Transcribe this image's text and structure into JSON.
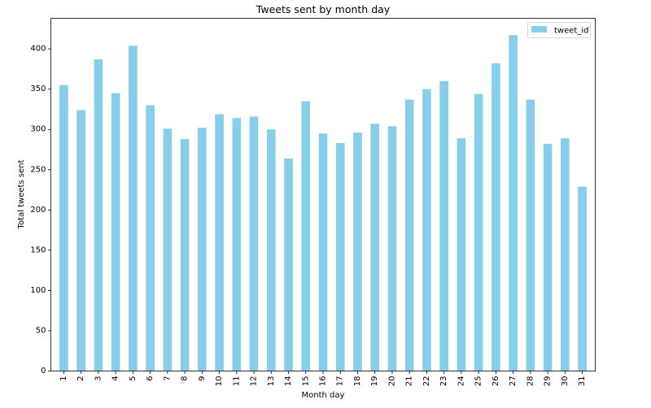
{
  "chart_data": {
    "type": "bar",
    "title": "Tweets sent by month day",
    "xlabel": "Month day",
    "ylabel": "Total tweets sent",
    "categories": [
      "1",
      "2",
      "3",
      "4",
      "5",
      "6",
      "7",
      "8",
      "9",
      "10",
      "11",
      "12",
      "13",
      "14",
      "15",
      "16",
      "17",
      "18",
      "19",
      "20",
      "21",
      "22",
      "23",
      "24",
      "25",
      "26",
      "27",
      "28",
      "29",
      "30",
      "31"
    ],
    "series": [
      {
        "name": "tweet_id",
        "color": "#87CEEB",
        "values": [
          355,
          324,
          387,
          345,
          404,
          330,
          301,
          288,
          302,
          319,
          314,
          316,
          300,
          264,
          335,
          295,
          283,
          296,
          307,
          304,
          337,
          350,
          360,
          289,
          344,
          382,
          417,
          337,
          282,
          289,
          229
        ]
      }
    ],
    "ylim": [
      0,
      438
    ],
    "yticks": [
      0,
      50,
      100,
      150,
      200,
      250,
      300,
      350,
      400
    ],
    "grid": false,
    "legend_position": "top-right"
  }
}
